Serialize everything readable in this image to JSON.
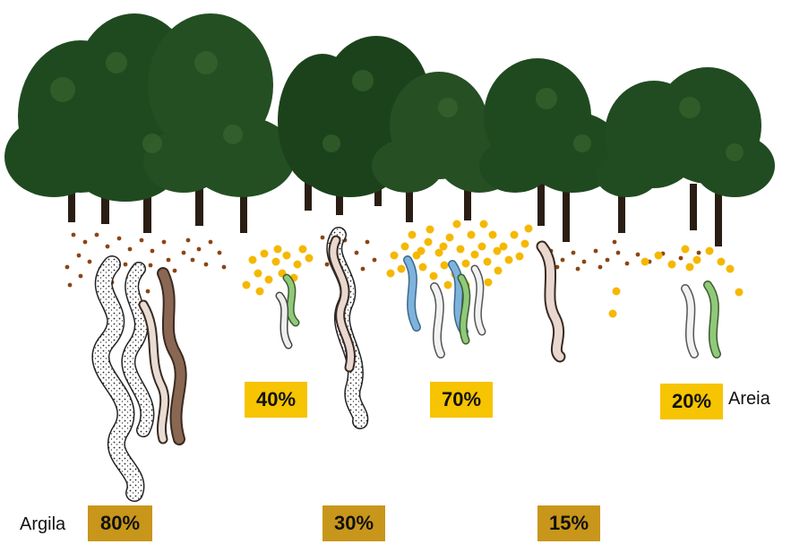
{
  "labels": {
    "sand": "Areia",
    "clay": "Argila"
  },
  "sand_percentages": [
    "40%",
    "70%",
    "20%"
  ],
  "clay_percentages": [
    "80%",
    "30%",
    "15%"
  ],
  "colors": {
    "sand_box": "#f6c400",
    "clay_box": "#c8961a",
    "sand_particles": "#f5b800",
    "clay_particles": "#8b4513",
    "foliage": "#1f4a1f",
    "trunk": "#2a1e14"
  },
  "icons": [
    "tree-icon",
    "clay-particle-icon",
    "sand-particle-icon",
    "nematode-icon"
  ]
}
